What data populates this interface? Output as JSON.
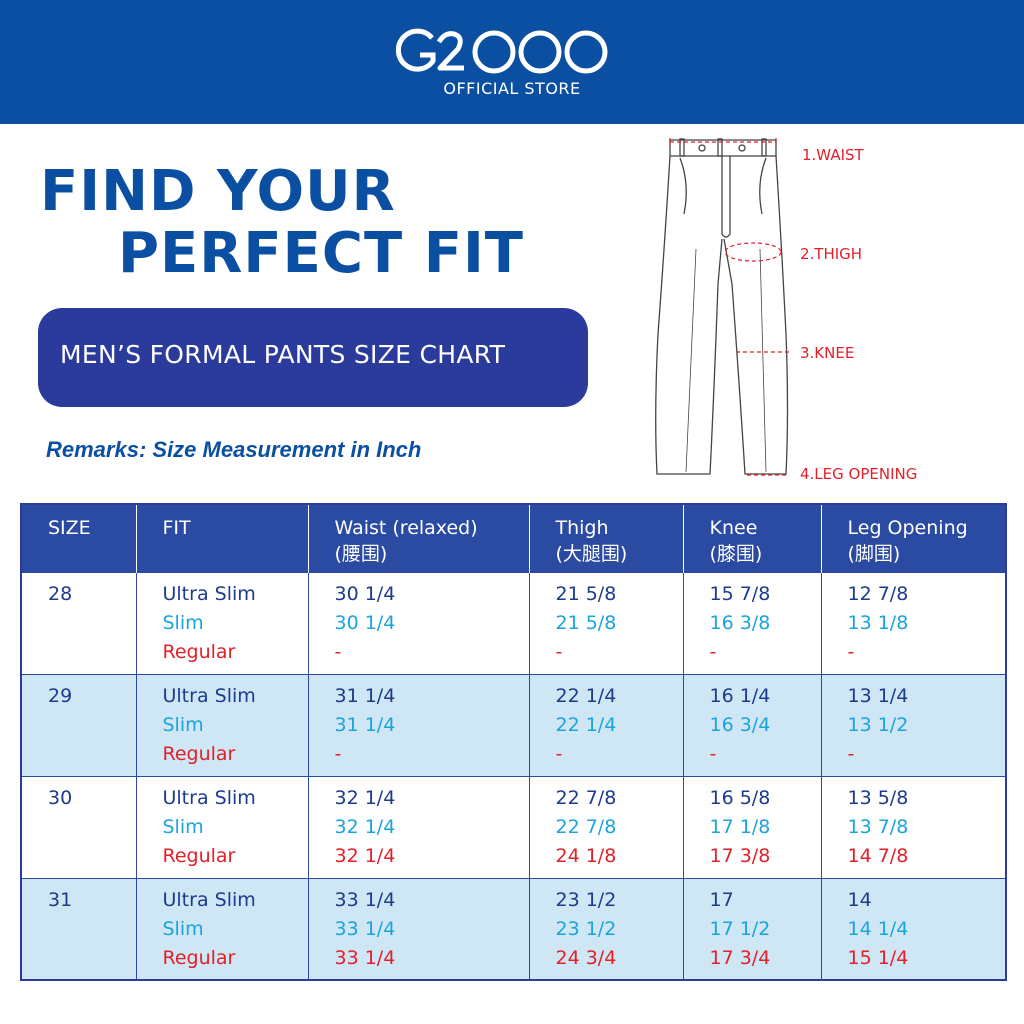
{
  "brand": {
    "logo_text": "G2000",
    "store": "OFFICIAL STORE",
    "header_color": "#0b4fa3"
  },
  "title": {
    "line1": "FIND YOUR",
    "line2": "PERFECT FIT"
  },
  "chart_title": "MEN’S FORMAL PANTS SIZE CHART",
  "remarks": "Remarks: Size Measurement in Inch",
  "diagram": {
    "labels": [
      "1.WAIST",
      "2.THIGH",
      "3.KNEE",
      "4.LEG OPENING"
    ],
    "label_color": "#e3202a"
  },
  "table": {
    "headers": [
      {
        "line1": "SIZE",
        "line2": ""
      },
      {
        "line1": "FIT",
        "line2": ""
      },
      {
        "line1": "Waist (relaxed)",
        "line2": "(腰围)"
      },
      {
        "line1": "Thigh",
        "line2": "(大腿围)"
      },
      {
        "line1": "Knee",
        "line2": "(膝围)"
      },
      {
        "line1": "Leg Opening",
        "line2": "(脚围)"
      }
    ],
    "fit_colors": {
      "Ultra Slim": "#1c3b8c",
      "Slim": "#1ba4dc",
      "Regular": "#e3202a"
    },
    "rows": [
      {
        "size": "28",
        "fits": [
          "Ultra Slim",
          "Slim",
          "Regular"
        ],
        "waist": [
          "30 1/4",
          "30 1/4",
          "-"
        ],
        "thigh": [
          "21 5/8",
          "21 5/8",
          "-"
        ],
        "knee": [
          "15 7/8",
          "16 3/8",
          "-"
        ],
        "leg": [
          "12 7/8",
          "13 1/8",
          "-"
        ]
      },
      {
        "size": "29",
        "fits": [
          "Ultra Slim",
          "Slim",
          "Regular"
        ],
        "waist": [
          "31 1/4",
          "31 1/4",
          "-"
        ],
        "thigh": [
          "22 1/4",
          "22 1/4",
          "-"
        ],
        "knee": [
          "16 1/4",
          "16 3/4",
          "-"
        ],
        "leg": [
          "13 1/4",
          "13 1/2",
          "-"
        ]
      },
      {
        "size": "30",
        "fits": [
          "Ultra Slim",
          "Slim",
          "Regular"
        ],
        "waist": [
          "32 1/4",
          "32 1/4",
          "32 1/4"
        ],
        "thigh": [
          "22 7/8",
          "22 7/8",
          "24 1/8"
        ],
        "knee": [
          "16 5/8",
          "17 1/8",
          "17 3/8"
        ],
        "leg": [
          "13 5/8",
          "13 7/8",
          "14 7/8"
        ]
      },
      {
        "size": "31",
        "fits": [
          "Ultra Slim",
          "Slim",
          "Regular"
        ],
        "waist": [
          "33 1/4",
          "33 1/4",
          "33 1/4"
        ],
        "thigh": [
          "23 1/2",
          "23 1/2",
          "24 3/4"
        ],
        "knee": [
          "17",
          "17 1/2",
          "17 3/4"
        ],
        "leg": [
          "14",
          "14 1/4",
          "15 1/4"
        ]
      }
    ]
  }
}
